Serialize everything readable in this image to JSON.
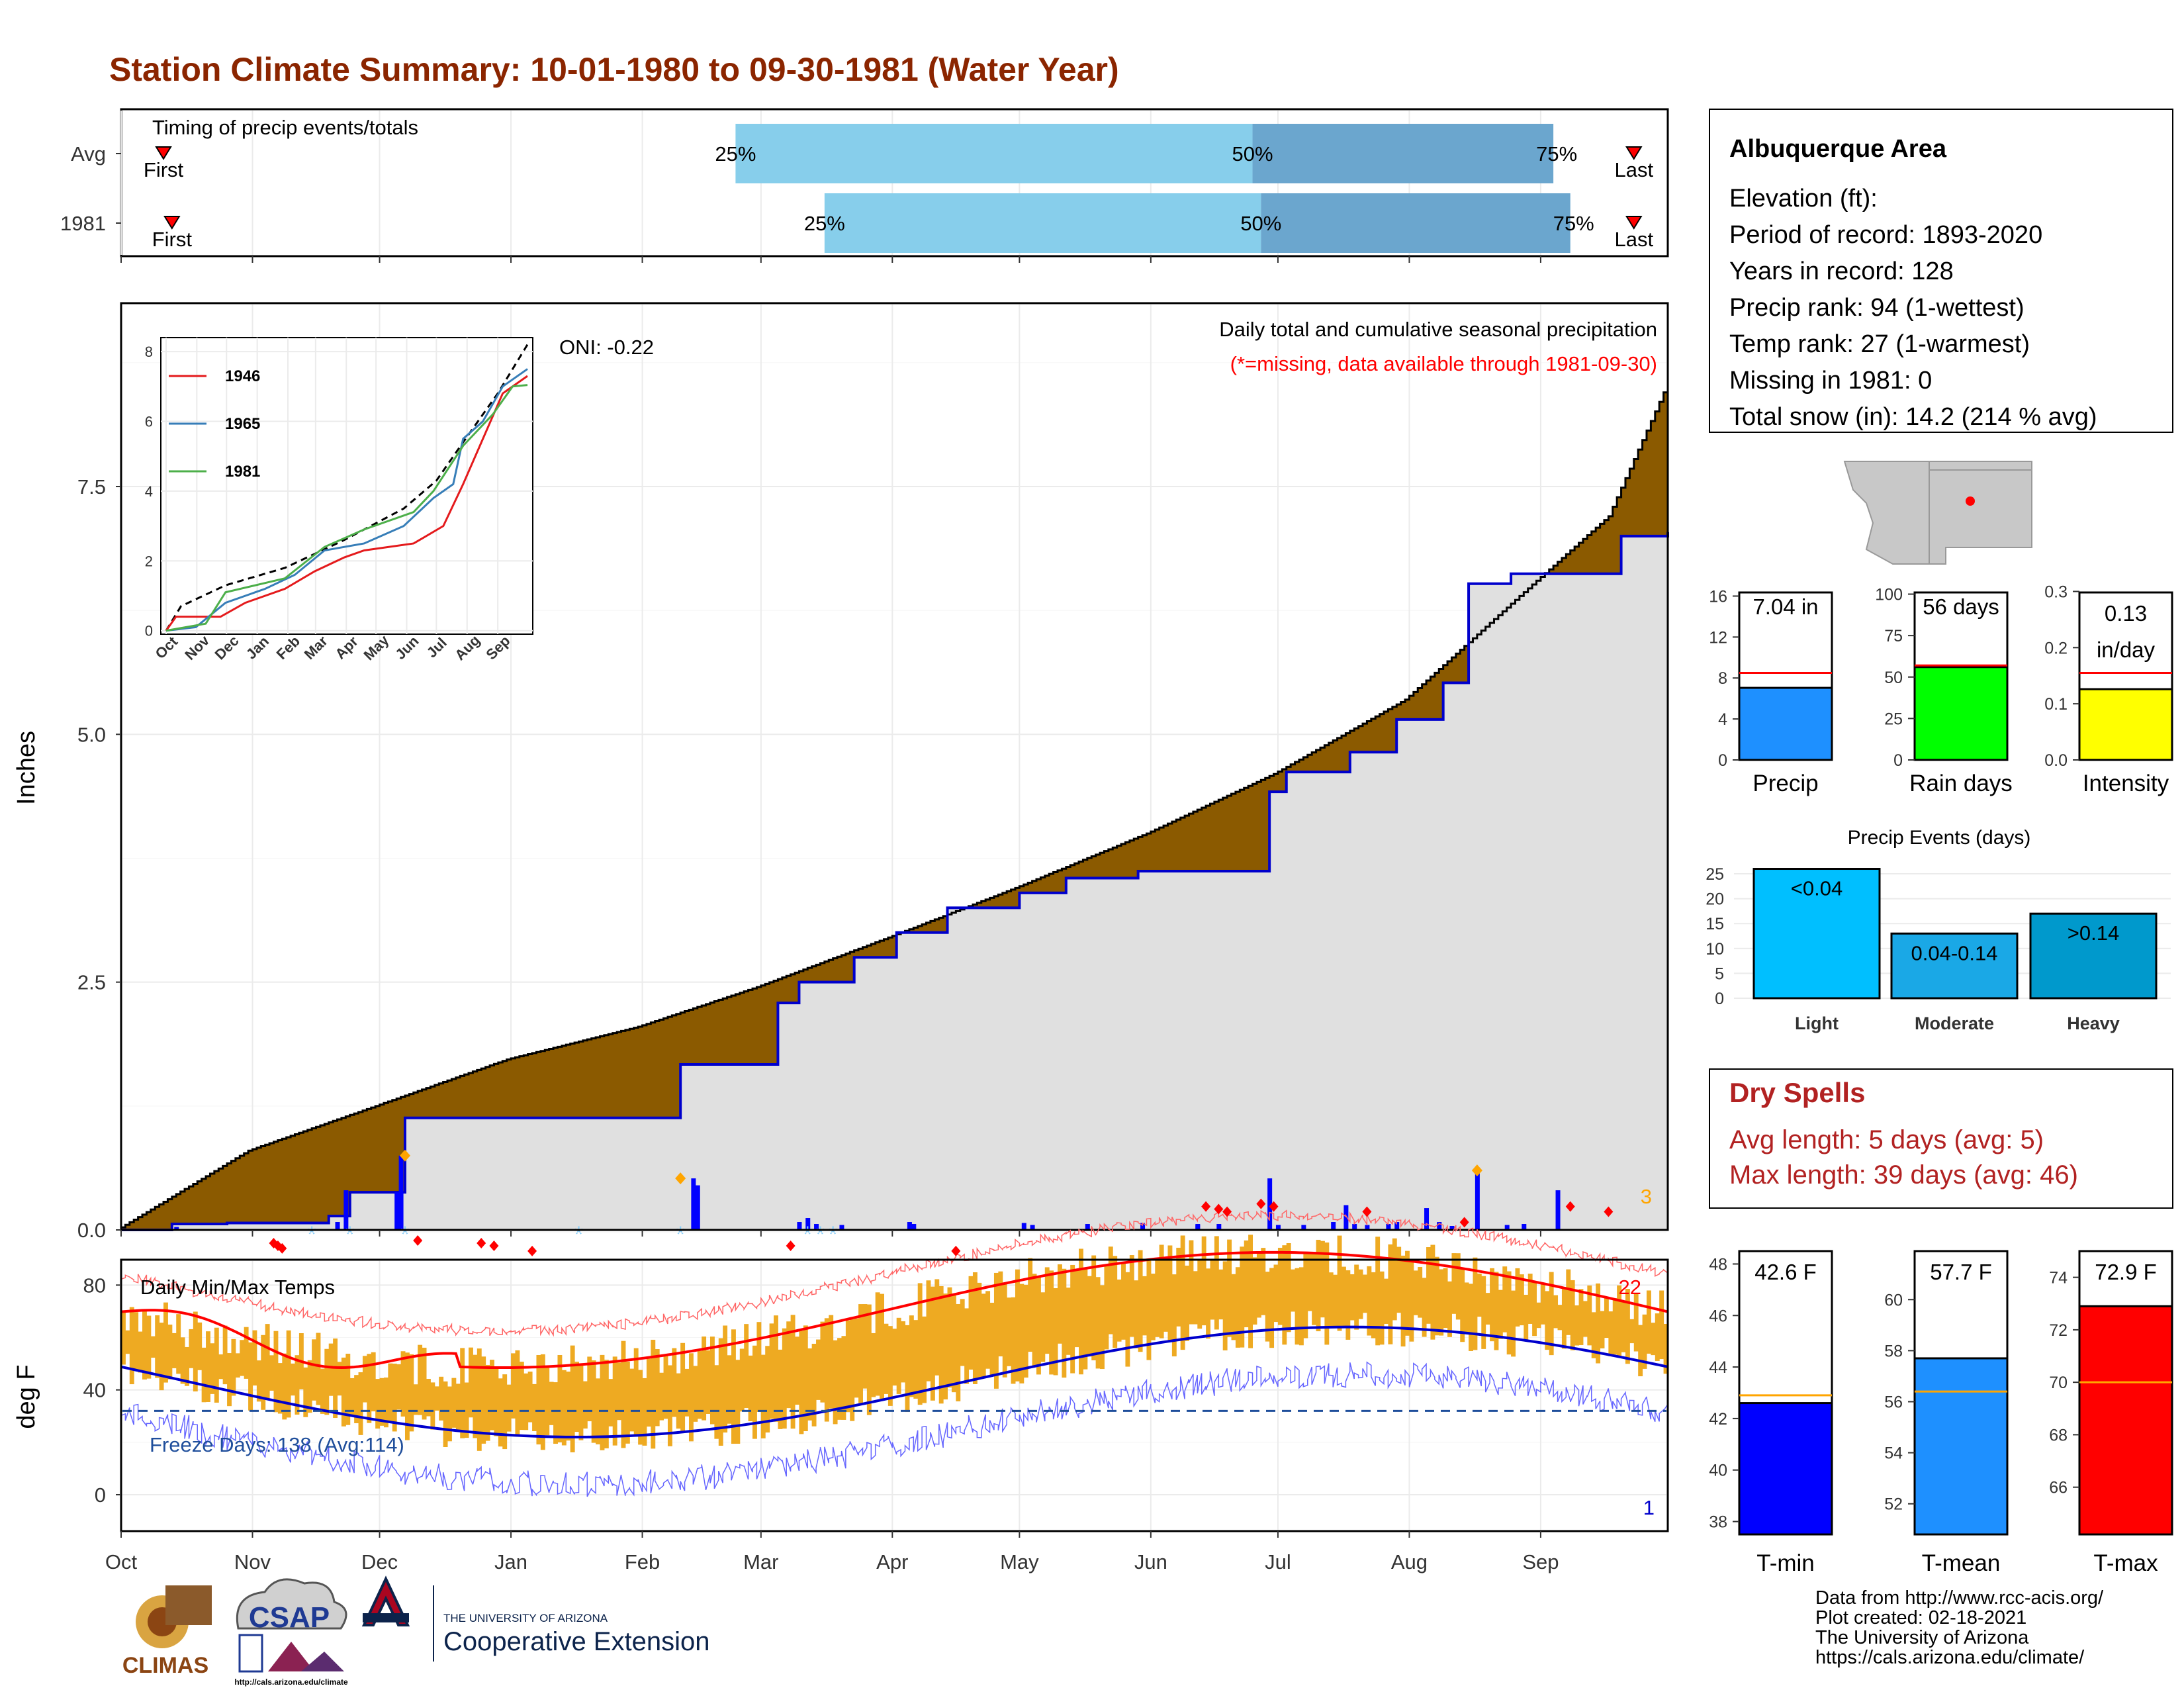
{
  "title": "Station Climate Summary: 10-01-1980 to 09-30-1981 (Water Year)",
  "colors": {
    "title": "#8B2500",
    "precip_fill": "#8B5A00",
    "cum_line": "#0000CC",
    "cum_fill": "#E0E0E0",
    "q_light": "#87CEEB",
    "q_dark": "#6BA6CE",
    "tmax": "#FF0000",
    "tmin": "#0000CC",
    "bar": "#EEAA22",
    "dryred": "#B22222"
  },
  "timing": {
    "label": "Timing of precip events/totals",
    "rows": [
      {
        "name": "Avg",
        "first": "First",
        "last": "Last",
        "p25": "25%",
        "p50": "50%",
        "p75": "75%",
        "first_day": 10,
        "p25_day": 145,
        "p50_day": 267,
        "p75_day": 338,
        "last_day": 357
      },
      {
        "name": "1981",
        "first": "First",
        "last": "Last",
        "p25": "25%",
        "p50": "50%",
        "p75": "75%",
        "first_day": 12,
        "p25_day": 166,
        "p50_day": 269,
        "p75_day": 342,
        "last_day": 357
      }
    ]
  },
  "main": {
    "ylabel": "Inches",
    "yticks": [
      "0.0",
      "2.5",
      "5.0",
      "7.5"
    ],
    "oni": "ONI: -0.22",
    "note1": "Daily total and cumulative seasonal precipitation",
    "note2": "(*=missing, data available through 1981-09-30)",
    "corner": "3",
    "months": [
      "Oct",
      "Nov",
      "Dec",
      "Jan",
      "Feb",
      "Mar",
      "Apr",
      "May",
      "Jun",
      "Jul",
      "Aug",
      "Sep"
    ]
  },
  "inset": {
    "series": [
      {
        "name": "1946",
        "color": "#E41A1C"
      },
      {
        "name": "1965",
        "color": "#377EB8"
      },
      {
        "name": "1981",
        "color": "#4DAF4A"
      }
    ],
    "yticks": [
      "0",
      "2",
      "4",
      "6",
      "8"
    ],
    "months": [
      "Oct",
      "Nov",
      "Dec",
      "Jan",
      "Feb",
      "Mar",
      "Apr",
      "May",
      "Jun",
      "Jul",
      "Aug",
      "Sep"
    ]
  },
  "temps": {
    "label": "Daily Min/Max Temps",
    "ylabel": "deg F",
    "yticks": [
      "0",
      "40",
      "80"
    ],
    "freeze": "Freeze Days: 138 (Avg:114)",
    "max_count": "22",
    "min_count": "1"
  },
  "info": {
    "name": "Albuquerque Area",
    "lines": [
      "Elevation (ft):",
      "Period of record: 1893-2020",
      "Years in record: 128",
      "Precip rank: 94 (1-wettest)",
      "Temp rank: 27 (1-warmest)",
      "Missing in 1981: 0",
      "Total snow (in): 14.2 (214 % avg)"
    ]
  },
  "precip_bars": [
    {
      "label": "Precip",
      "value_text": "7.04 in",
      "value": 7.04,
      "avg": 8.5,
      "ymax": 17,
      "ticks": [
        "0",
        "4",
        "8",
        "12",
        "16"
      ],
      "color": "#1E90FF"
    },
    {
      "label": "Rain days",
      "value_text": "56 days",
      "value": 56,
      "avg": 57,
      "ymax": 105,
      "ticks": [
        "0",
        "25",
        "50",
        "75",
        "100"
      ],
      "color": "#00FF00"
    },
    {
      "label": "Intensity",
      "value_text": "0.13\nin/day",
      "value": 0.126,
      "avg": 0.155,
      "ymax": 0.31,
      "ticks": [
        "0.0",
        "0.1",
        "0.2",
        "0.3"
      ],
      "color": "#FFFF00"
    }
  ],
  "events": {
    "title": "Precip Events (days)",
    "ticks": [
      "0",
      "5",
      "10",
      "15",
      "20",
      "25"
    ],
    "bars": [
      {
        "name": "Light",
        "label": "<0.04",
        "value": 26,
        "color": "#00BFFF"
      },
      {
        "name": "Moderate",
        "label": "0.04-0.14",
        "value": 13,
        "color": "#1AA8E6"
      },
      {
        "name": "Heavy",
        "label": ">0.14",
        "value": 17,
        "color": "#0099CC"
      }
    ]
  },
  "dry": {
    "title": "Dry Spells",
    "avg": "Avg length: 5 days (avg: 5)",
    "max": "Max length: 39 days (avg: 46)"
  },
  "temp_bars": [
    {
      "label": "T-min",
      "value_text": "42.6 F",
      "value": 42.6,
      "avg": 42.9,
      "ymin": 37.5,
      "ymax": 48.5,
      "ticks": [
        "38",
        "40",
        "42",
        "44",
        "46",
        "48"
      ],
      "color": "#0000FF"
    },
    {
      "label": "T-mean",
      "value_text": "57.7 F",
      "value": 57.7,
      "avg": 56.4,
      "ymin": 50.8,
      "ymax": 61.9,
      "ticks": [
        "52",
        "54",
        "56",
        "58",
        "60"
      ],
      "color": "#1E90FF"
    },
    {
      "label": "T-max",
      "value_text": "72.9 F",
      "value": 72.9,
      "avg": 70.0,
      "ymin": 64.2,
      "ymax": 75.0,
      "ticks": [
        "66",
        "68",
        "70",
        "72",
        "74"
      ],
      "color": "#FF0000"
    }
  ],
  "footer": {
    "lines": [
      "Data from http://www.rcc-acis.org/",
      "Plot created: 02-18-2021",
      "The University of Arizona",
      "https://cals.arizona.edu/climate/"
    ],
    "climas": "CLIMAS",
    "csap": "CSAP",
    "csap_url": "http://cals.arizona.edu/climate",
    "ua_small": "THE UNIVERSITY OF ARIZONA",
    "ua_big": "Cooperative Extension"
  }
}
